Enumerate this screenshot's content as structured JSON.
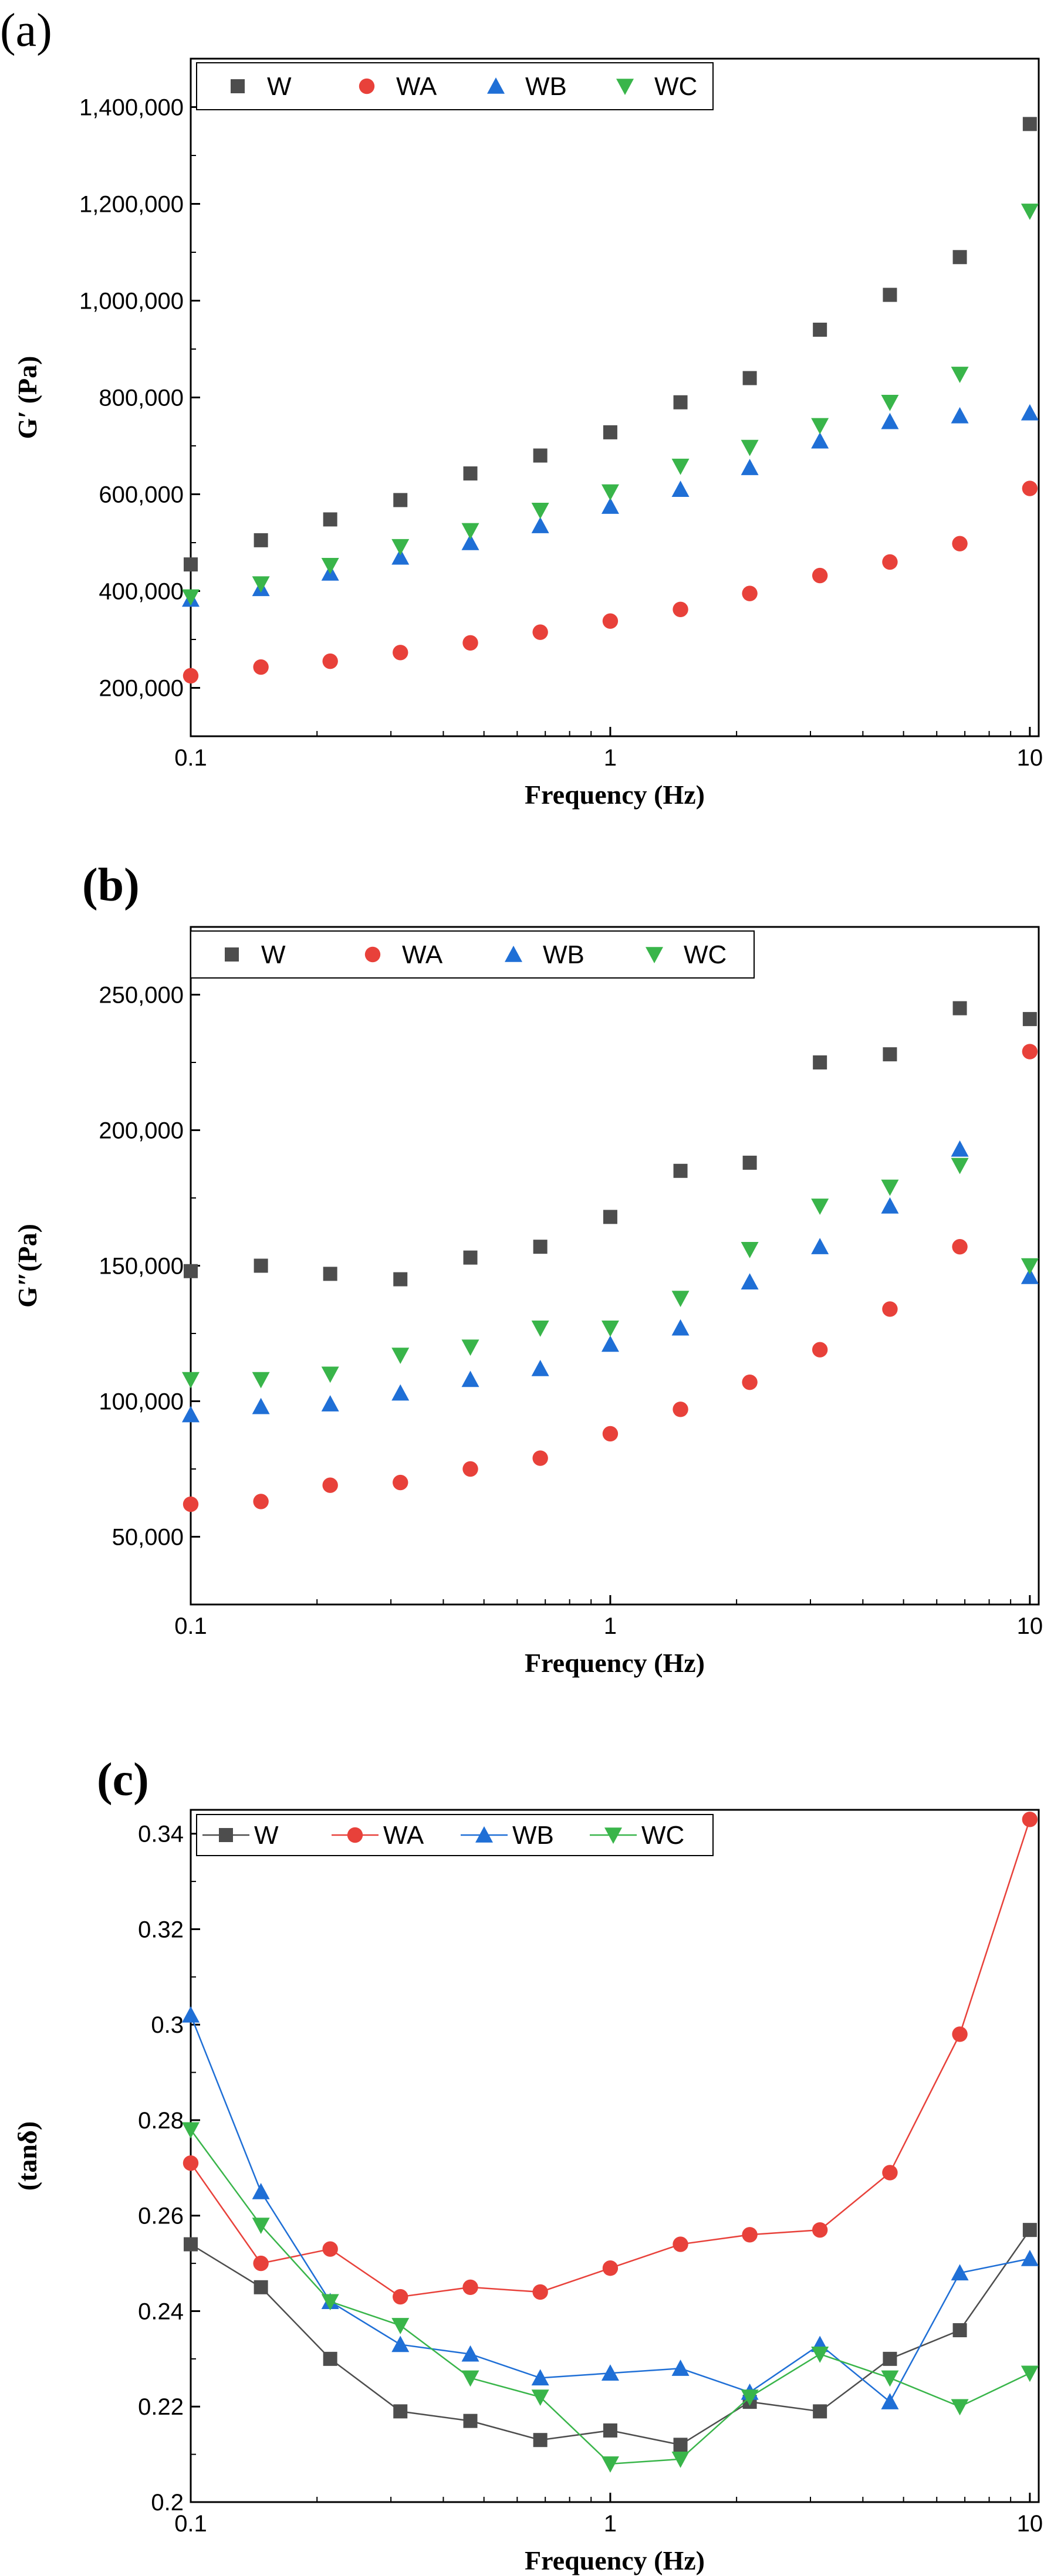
{
  "colors": {
    "W": "#4d4d4d",
    "WA": "#e8413a",
    "WB": "#1f6fd6",
    "WC": "#39b54a"
  },
  "chart_data": [
    {
      "panel": "(a)",
      "type": "scatter",
      "xlabel": "Frequency (Hz)",
      "ylabel": "G′ (Pa)",
      "xscale": "log",
      "xlim": [
        0.1,
        10.5
      ],
      "ylim": [
        100000,
        1500000
      ],
      "xticks": [
        0.1,
        1,
        10
      ],
      "xtick_labels": [
        "0.1",
        "1",
        "10"
      ],
      "yticks": [
        200000,
        400000,
        600000,
        800000,
        1000000,
        1200000,
        1400000
      ],
      "ytick_labels": [
        "200,000",
        "400,000",
        "600,000",
        "800,000",
        "1,000,000",
        "1,200,000",
        "1,400,000"
      ],
      "legend": "top-left",
      "x": [
        0.1,
        0.147,
        0.215,
        0.316,
        0.464,
        0.681,
        1,
        1.47,
        2.15,
        3.16,
        4.64,
        6.81,
        10
      ],
      "series": [
        {
          "name": "W",
          "marker": "square",
          "values": [
            455000,
            505000,
            548000,
            588000,
            643000,
            680000,
            728000,
            790000,
            840000,
            940000,
            1012000,
            1090000,
            1365000
          ]
        },
        {
          "name": "WA",
          "marker": "circle",
          "values": [
            225000,
            243000,
            255000,
            273000,
            293000,
            315000,
            338000,
            362000,
            395000,
            432000,
            460000,
            498000,
            612000
          ]
        },
        {
          "name": "WB",
          "marker": "triangle-up",
          "values": [
            383000,
            405000,
            437000,
            470000,
            500000,
            535000,
            575000,
            610000,
            655000,
            710000,
            750000,
            762000,
            768000
          ]
        },
        {
          "name": "WC",
          "marker": "triangle-down",
          "values": [
            388000,
            415000,
            453000,
            492000,
            525000,
            567000,
            605000,
            658000,
            697000,
            742000,
            790000,
            848000,
            1185000
          ]
        }
      ]
    },
    {
      "panel": "(b)",
      "type": "scatter",
      "xlabel": "Frequency (Hz)",
      "ylabel": "G″(Pa)",
      "xscale": "log",
      "xlim": [
        0.1,
        10.5
      ],
      "ylim": [
        25000,
        275000
      ],
      "xticks": [
        0.1,
        1,
        10
      ],
      "xtick_labels": [
        "0.1",
        "1",
        "10"
      ],
      "yticks": [
        50000,
        100000,
        150000,
        200000,
        250000
      ],
      "ytick_labels": [
        "50,000",
        "100,000",
        "150,000",
        "200,000",
        "250,000"
      ],
      "legend": "top-left",
      "x": [
        0.1,
        0.147,
        0.215,
        0.316,
        0.464,
        0.681,
        1,
        1.47,
        2.15,
        3.16,
        4.64,
        6.81,
        10
      ],
      "series": [
        {
          "name": "W",
          "marker": "square",
          "values": [
            148000,
            150000,
            147000,
            145000,
            153000,
            157000,
            168000,
            185000,
            188000,
            225000,
            228000,
            245000,
            241000
          ]
        },
        {
          "name": "WA",
          "marker": "circle",
          "values": [
            62000,
            63000,
            69000,
            70000,
            75000,
            79000,
            88000,
            97000,
            107000,
            119000,
            134000,
            157000,
            229000
          ]
        },
        {
          "name": "WB",
          "marker": "triangle-up",
          "values": [
            95000,
            98000,
            99000,
            103000,
            108000,
            112000,
            121000,
            127000,
            144000,
            157000,
            172000,
            193000,
            146000
          ]
        },
        {
          "name": "WC",
          "marker": "triangle-down",
          "values": [
            108000,
            108000,
            110000,
            117000,
            120000,
            127000,
            127000,
            138000,
            156000,
            172000,
            179000,
            187000,
            150000
          ]
        }
      ]
    },
    {
      "panel": "(c)",
      "type": "line",
      "xlabel": "Frequency (Hz)",
      "ylabel": "(tanδ)",
      "xscale": "log",
      "xlim": [
        0.1,
        10.5
      ],
      "ylim": [
        0.2,
        0.345
      ],
      "xticks": [
        0.1,
        1,
        10
      ],
      "xtick_labels": [
        "0.1",
        "1",
        "10"
      ],
      "yticks": [
        0.2,
        0.22,
        0.24,
        0.26,
        0.28,
        0.3,
        0.32,
        0.34
      ],
      "ytick_labels": [
        "0.2",
        "0.22",
        "0.24",
        "0.26",
        "0.28",
        "0.3",
        "0.32",
        "0.34"
      ],
      "legend": "top-left",
      "x": [
        0.1,
        0.147,
        0.215,
        0.316,
        0.464,
        0.681,
        1,
        1.47,
        2.15,
        3.16,
        4.64,
        6.81,
        10
      ],
      "series": [
        {
          "name": "W",
          "marker": "square",
          "values": [
            0.254,
            0.245,
            0.23,
            0.219,
            0.217,
            0.213,
            0.215,
            0.212,
            0.221,
            0.219,
            0.23,
            0.236,
            0.257
          ]
        },
        {
          "name": "WA",
          "marker": "circle",
          "values": [
            0.271,
            0.25,
            0.253,
            0.243,
            0.245,
            0.244,
            0.249,
            0.254,
            0.256,
            0.257,
            0.269,
            0.298,
            0.343
          ]
        },
        {
          "name": "WB",
          "marker": "triangle-up",
          "values": [
            0.302,
            0.265,
            0.242,
            0.233,
            0.231,
            0.226,
            0.227,
            0.228,
            0.223,
            0.233,
            0.221,
            0.248,
            0.251
          ]
        },
        {
          "name": "WC",
          "marker": "triangle-down",
          "values": [
            0.278,
            0.258,
            0.242,
            0.237,
            0.226,
            0.222,
            0.208,
            0.209,
            0.222,
            0.231,
            0.226,
            0.22,
            0.227
          ]
        }
      ]
    }
  ]
}
